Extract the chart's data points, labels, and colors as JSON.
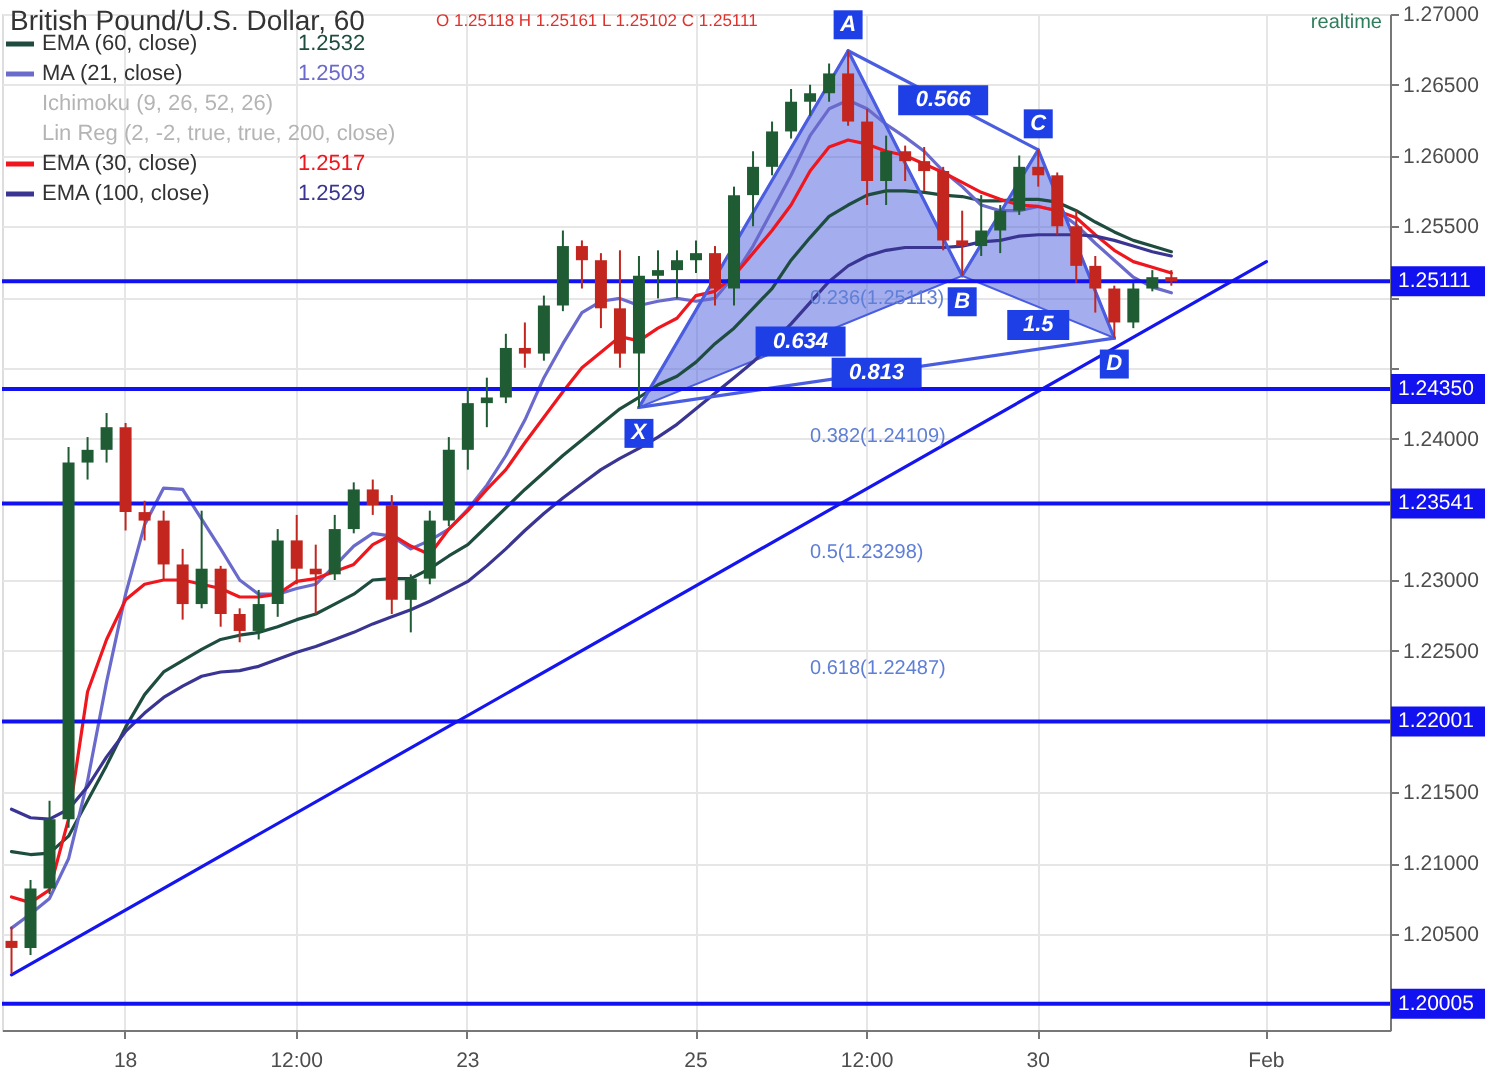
{
  "chart_data": {
    "type": "candlestick",
    "title": "British Pound/U.S. Dollar, 60",
    "subtitle": "O 1.25118 H 1.25161 L 1.25102 C 1.25111",
    "categories": [
      null,
      null,
      null,
      null,
      null,
      null,
      "18",
      null,
      null,
      null,
      null,
      null,
      null,
      null,
      null,
      "12:00",
      null,
      null,
      null,
      null,
      null,
      null,
      null,
      null,
      "23",
      null,
      null,
      null,
      null,
      null,
      null,
      null,
      null,
      null,
      null,
      null,
      "25",
      null,
      null,
      null,
      null,
      null,
      null,
      null,
      null,
      "12:00",
      null,
      null,
      null,
      null,
      null,
      null,
      null,
      null,
      "30",
      null,
      null,
      null,
      null,
      null,
      null,
      null,
      null,
      null,
      null,
      null,
      "Feb",
      null,
      null,
      null,
      null,
      null,
      null
    ],
    "ohlc": [
      [
        1.2045,
        1.2055,
        1.2022,
        1.204
      ],
      [
        1.204,
        1.2088,
        1.2035,
        1.2082
      ],
      [
        1.2082,
        1.2144,
        1.2078,
        1.2131
      ],
      [
        1.2131,
        1.2394,
        1.2125,
        1.2383
      ],
      [
        1.2383,
        1.2401,
        1.2371,
        1.2392
      ],
      [
        1.2392,
        1.2418,
        1.2383,
        1.2408
      ],
      [
        1.2408,
        1.2411,
        1.2335,
        1.2348
      ],
      [
        1.2348,
        1.2356,
        1.2328,
        1.2342
      ],
      [
        1.2342,
        1.2349,
        1.23,
        1.2311
      ],
      [
        1.2311,
        1.2322,
        1.2272,
        1.2283
      ],
      [
        1.2283,
        1.2349,
        1.228,
        1.2308
      ],
      [
        1.2308,
        1.231,
        1.2267,
        1.2276
      ],
      [
        1.2276,
        1.228,
        1.2256,
        1.2264
      ],
      [
        1.2264,
        1.2293,
        1.2258,
        1.2283
      ],
      [
        1.2283,
        1.2336,
        1.2274,
        1.2328
      ],
      [
        1.2328,
        1.2346,
        1.2297,
        1.2308
      ],
      [
        1.2308,
        1.2325,
        1.2276,
        1.2304
      ],
      [
        1.2304,
        1.2346,
        1.23,
        1.2336
      ],
      [
        1.2336,
        1.2369,
        1.2333,
        1.2364
      ],
      [
        1.2364,
        1.2371,
        1.2346,
        1.2353
      ],
      [
        1.2353,
        1.236,
        1.2276,
        1.2286
      ],
      [
        1.2286,
        1.2304,
        1.2263,
        1.2301
      ],
      [
        1.2301,
        1.2349,
        1.2297,
        1.2342
      ],
      [
        1.2342,
        1.2401,
        1.2338,
        1.2392
      ],
      [
        1.2392,
        1.2436,
        1.2378,
        1.2425
      ],
      [
        1.2425,
        1.2443,
        1.2408,
        1.2429
      ],
      [
        1.2429,
        1.2474,
        1.2425,
        1.2464
      ],
      [
        1.2464,
        1.2482,
        1.245,
        1.246
      ],
      [
        1.246,
        1.2501,
        1.2455,
        1.2494
      ],
      [
        1.2494,
        1.2547,
        1.249,
        1.2536
      ],
      [
        1.2536,
        1.254,
        1.2506,
        1.2526
      ],
      [
        1.2526,
        1.2531,
        1.2478,
        1.2492
      ],
      [
        1.2492,
        1.2533,
        1.245,
        1.246
      ],
      [
        1.246,
        1.2529,
        1.2422,
        1.2515
      ],
      [
        1.2515,
        1.2533,
        1.2499,
        1.2519
      ],
      [
        1.2519,
        1.2533,
        1.2499,
        1.2526
      ],
      [
        1.2526,
        1.254,
        1.2517,
        1.2531
      ],
      [
        1.2531,
        1.2536,
        1.2494,
        1.2506
      ],
      [
        1.2506,
        1.2578,
        1.2494,
        1.2572
      ],
      [
        1.2572,
        1.2603,
        1.255,
        1.2592
      ],
      [
        1.2592,
        1.2624,
        1.2586,
        1.2617
      ],
      [
        1.2617,
        1.2647,
        1.2612,
        1.2638
      ],
      [
        1.2638,
        1.265,
        1.2628,
        1.2644
      ],
      [
        1.2644,
        1.2665,
        1.2638,
        1.2658
      ],
      [
        1.2658,
        1.2674,
        1.2621,
        1.2624
      ],
      [
        1.2624,
        1.2633,
        1.2565,
        1.2582
      ],
      [
        1.2582,
        1.2614,
        1.2565,
        1.2603
      ],
      [
        1.2603,
        1.2607,
        1.2582,
        1.2596
      ],
      [
        1.2596,
        1.2606,
        1.2575,
        1.2589
      ],
      [
        1.2589,
        1.2592,
        1.2533,
        1.254
      ],
      [
        1.254,
        1.2561,
        1.2515,
        1.2536
      ],
      [
        1.2536,
        1.2572,
        1.2529,
        1.2547
      ],
      [
        1.2547,
        1.2565,
        1.2531,
        1.2561
      ],
      [
        1.2561,
        1.26,
        1.2558,
        1.2592
      ],
      [
        1.2592,
        1.2604,
        1.2578,
        1.2586
      ],
      [
        1.2586,
        1.2588,
        1.2544,
        1.255
      ],
      [
        1.255,
        1.2561,
        1.251,
        1.2522
      ],
      [
        1.2522,
        1.2529,
        1.2489,
        1.2506
      ],
      [
        1.2506,
        1.2508,
        1.2471,
        1.2482
      ],
      [
        1.2482,
        1.251,
        1.2478,
        1.2506
      ],
      [
        1.2506,
        1.2519,
        1.2504,
        1.2514
      ],
      [
        1.2514,
        1.2519,
        1.2508,
        1.2511
      ],
      null,
      null,
      null,
      null,
      null,
      null,
      null,
      null,
      null,
      null,
      null
    ],
    "colors": [
      "#c2261f",
      "#1f5c34",
      "#1f5c34",
      "#1f5c34",
      "#1f5c34",
      "#1f5c34",
      "#c2261f",
      "#c2261f",
      "#c2261f",
      "#c2261f",
      "#1f5c34",
      "#c2261f",
      "#c2261f",
      "#1f5c34",
      "#1f5c34",
      "#c2261f",
      "#c2261f",
      "#1f5c34",
      "#1f5c34",
      "#c2261f",
      "#c2261f",
      "#1f5c34",
      "#1f5c34",
      "#1f5c34",
      "#1f5c34",
      "#1f5c34",
      "#1f5c34",
      "#c2261f",
      "#1f5c34",
      "#1f5c34",
      "#c2261f",
      "#c2261f",
      "#c2261f",
      "#1f5c34",
      "#1f5c34",
      "#1f5c34",
      "#1f5c34",
      "#c2261f",
      "#1f5c34",
      "#1f5c34",
      "#1f5c34",
      "#1f5c34",
      "#1f5c34",
      "#1f5c34",
      "#c2261f",
      "#c2261f",
      "#1f5c34",
      "#c2261f",
      "#c2261f",
      "#c2261f",
      "#c2261f",
      "#1f5c34",
      "#1f5c34",
      "#1f5c34",
      "#c2261f",
      "#c2261f",
      "#c2261f",
      "#c2261f",
      "#c2261f",
      "#1f5c34",
      "#1f5c34",
      "#c2261f",
      null,
      null,
      null,
      null,
      null,
      null,
      null,
      null,
      null,
      null,
      null
    ],
    "series": [
      {
        "name": "EMA (60, close)",
        "type": "line",
        "color": "#1e4d40",
        "values": [
          1.2108,
          1.2106,
          1.2107,
          1.2119,
          1.2144,
          1.2169,
          1.2196,
          1.2219,
          1.2235,
          1.2243,
          1.2251,
          1.2258,
          1.2261,
          1.2263,
          1.2267,
          1.2272,
          1.2276,
          1.2283,
          1.229,
          1.23,
          1.2301,
          1.2301,
          1.2308,
          1.2317,
          1.2325,
          1.2338,
          1.2351,
          1.2364,
          1.2376,
          1.2388,
          1.2399,
          1.241,
          1.2421,
          1.2429,
          1.2438,
          1.2444,
          1.2454,
          1.2467,
          1.2478,
          1.2492,
          1.2506,
          1.2526,
          1.2542,
          1.2557,
          1.2565,
          1.2572,
          1.2575,
          1.2575,
          1.2574,
          1.2572,
          1.2571,
          1.2568,
          1.2568,
          1.2569,
          1.2569,
          1.2567,
          1.2561,
          1.2553,
          1.2546,
          1.254,
          1.2536,
          1.2532,
          null,
          null,
          null,
          null,
          null,
          null,
          null,
          null,
          null,
          null,
          null
        ]
      },
      {
        "name": "MA (21, close)",
        "type": "line",
        "color": "#6a6acd",
        "values": [
          1.2054,
          1.2064,
          1.2075,
          1.2103,
          1.2158,
          1.2228,
          1.229,
          1.2339,
          1.2365,
          1.2364,
          1.2343,
          1.2322,
          1.23,
          1.229,
          1.229,
          1.2294,
          1.2297,
          1.231,
          1.2324,
          1.2333,
          1.2331,
          1.2322,
          1.2328,
          1.2336,
          1.235,
          1.2367,
          1.2388,
          1.2413,
          1.2443,
          1.2467,
          1.2489,
          1.2497,
          1.2499,
          1.2494,
          1.2497,
          1.2499,
          1.2497,
          1.2499,
          1.2515,
          1.2536,
          1.2561,
          1.2586,
          1.2614,
          1.2633,
          1.2639,
          1.2633,
          1.2622,
          1.2613,
          1.2603,
          1.2589,
          1.2578,
          1.2565,
          1.2561,
          1.2561,
          1.2564,
          1.2561,
          1.2551,
          1.2538,
          1.2526,
          1.2514,
          1.2507,
          1.2503,
          null,
          null,
          null,
          null,
          null,
          null,
          null,
          null,
          null,
          null,
          null
        ]
      },
      {
        "name": "EMA (30, close)",
        "type": "line",
        "color": "#f0161e",
        "values": [
          1.2076,
          1.2072,
          1.2081,
          1.2131,
          1.2221,
          1.2258,
          1.2286,
          1.2297,
          1.23,
          1.23,
          1.2297,
          1.2294,
          1.2288,
          1.2288,
          1.229,
          1.2299,
          1.2301,
          1.2306,
          1.2311,
          1.2325,
          1.2332,
          1.2324,
          1.2318,
          1.2336,
          1.2349,
          1.2364,
          1.2378,
          1.2397,
          1.2415,
          1.2433,
          1.245,
          1.2461,
          1.2472,
          1.2469,
          1.2478,
          1.2485,
          1.2501,
          1.2504,
          1.2515,
          1.2531,
          1.2547,
          1.2565,
          1.2589,
          1.2606,
          1.2611,
          1.2608,
          1.2603,
          1.26,
          1.2594,
          1.2588,
          1.2581,
          1.2574,
          1.2569,
          1.2565,
          1.2564,
          1.2561,
          1.2556,
          1.2544,
          1.2533,
          1.2525,
          1.2521,
          1.2517,
          null,
          null,
          null,
          null,
          null,
          null,
          null,
          null,
          null,
          null,
          null
        ]
      },
      {
        "name": "EMA (100, close)",
        "type": "line",
        "color": "#3a3592",
        "values": [
          1.2138,
          1.2132,
          1.2131,
          1.2138,
          1.2154,
          1.2175,
          1.2193,
          1.2206,
          1.2217,
          1.2225,
          1.2232,
          1.2235,
          1.2236,
          1.2239,
          1.2244,
          1.2249,
          1.2253,
          1.2258,
          1.2263,
          1.2269,
          1.2274,
          1.2279,
          1.2285,
          1.2292,
          1.2299,
          1.231,
          1.2322,
          1.2335,
          1.2347,
          1.2358,
          1.2368,
          1.2378,
          1.2386,
          1.2393,
          1.2401,
          1.241,
          1.2421,
          1.2432,
          1.2443,
          1.2454,
          null,
          1.2481,
          1.2496,
          1.2511,
          1.2522,
          1.2529,
          1.2533,
          1.2535,
          1.2535,
          1.2535,
          1.2536,
          1.2539,
          1.254,
          1.2543,
          1.2544,
          1.2544,
          1.2544,
          1.2543,
          1.254,
          1.2536,
          1.2532,
          1.2529,
          null,
          null,
          null,
          null,
          null,
          null,
          null,
          null,
          null,
          null,
          null
        ]
      },
      {
        "type": "line",
        "color": "#1515f0",
        "values": [
          1.2021,
          null,
          null,
          null,
          null,
          null,
          null,
          null,
          null,
          null,
          null,
          null,
          null,
          null,
          null,
          null,
          null,
          null,
          null,
          null,
          null,
          null,
          null,
          null,
          null,
          null,
          null,
          null,
          null,
          null,
          null,
          null,
          null,
          null,
          null,
          null,
          null,
          null,
          null,
          null,
          null,
          null,
          null,
          null,
          null,
          null,
          null,
          null,
          null,
          null,
          null,
          null,
          null,
          null,
          null,
          null,
          null,
          null,
          null,
          null,
          null,
          null,
          null,
          null,
          null,
          null,
          1.2525,
          null,
          null,
          null,
          null,
          null,
          null
        ]
      },
      {
        "type": "line",
        "color": "#4a5de0",
        "values": [
          null,
          null,
          null,
          null,
          null,
          null,
          null,
          null,
          null,
          null,
          null,
          null,
          null,
          null,
          null,
          null,
          null,
          null,
          null,
          null,
          null,
          null,
          null,
          null,
          null,
          null,
          null,
          null,
          null,
          null,
          null,
          null,
          null,
          1.2422,
          null,
          null,
          null,
          null,
          null,
          null,
          null,
          null,
          null,
          null,
          1.2674,
          null,
          null,
          null,
          null,
          null,
          1.2515,
          null,
          null,
          null,
          1.2604,
          null,
          null,
          null,
          1.2471,
          null,
          null,
          null,
          null,
          null,
          null,
          null,
          null,
          null,
          null,
          null,
          null,
          null,
          null
        ],
        "lower": [
          null,
          null,
          null,
          null,
          null,
          null,
          null,
          null,
          null,
          null,
          null,
          null,
          null,
          null,
          null,
          null,
          null,
          null,
          null,
          null,
          null,
          null,
          null,
          null,
          null,
          null,
          null,
          null,
          null,
          null,
          null,
          null,
          null,
          1.2422,
          null,
          null,
          null,
          null,
          null,
          null,
          null,
          null,
          null,
          null,
          1.2482,
          null,
          null,
          null,
          null,
          null,
          1.2515,
          null,
          null,
          null,
          1.2493,
          null,
          null,
          null,
          1.2471,
          null,
          null,
          null,
          null,
          null,
          null,
          null,
          null,
          null,
          null,
          null,
          null,
          null,
          null
        ],
        "upper": [
          null,
          null,
          null,
          null,
          null,
          null,
          null,
          null,
          null,
          null,
          null,
          null,
          null,
          null,
          null,
          null,
          null,
          null,
          null,
          null,
          null,
          null,
          null,
          null,
          null,
          null,
          null,
          null,
          null,
          null,
          null,
          null,
          null,
          1.2422,
          null,
          null,
          null,
          null,
          null,
          null,
          null,
          null,
          null,
          null,
          1.2674,
          null,
          null,
          null,
          null,
          null,
          1.2515,
          null,
          null,
          null,
          1.2604,
          null,
          null,
          null,
          1.2471,
          null,
          null,
          null,
          null,
          null,
          null,
          null,
          null,
          null,
          null,
          null,
          null,
          null,
          null
        ]
      },
      {
        "type": "line",
        "color": "#4a5de0",
        "values": [
          null,
          null,
          null,
          null,
          null,
          null,
          null,
          null,
          null,
          null,
          null,
          null,
          null,
          null,
          null,
          null,
          null,
          null,
          null,
          null,
          null,
          null,
          null,
          null,
          null,
          null,
          null,
          null,
          null,
          null,
          null,
          null,
          null,
          null,
          null,
          null,
          null,
          null,
          null,
          null,
          null,
          null,
          null,
          null,
          1.2674,
          null,
          null,
          null,
          null,
          null,
          null,
          null,
          null,
          null,
          1.2604,
          null,
          null,
          null,
          null,
          null,
          null,
          null,
          null,
          null,
          null,
          null,
          null,
          null,
          null,
          null,
          null,
          null,
          null
        ]
      },
      {
        "type": "line",
        "color": "#4a5de0",
        "values": [
          null,
          null,
          null,
          null,
          null,
          null,
          null,
          null,
          null,
          null,
          null,
          null,
          null,
          null,
          null,
          null,
          null,
          null,
          null,
          null,
          null,
          null,
          null,
          null,
          null,
          null,
          null,
          null,
          null,
          null,
          null,
          null,
          null,
          1.2422,
          null,
          null,
          null,
          null,
          null,
          null,
          null,
          null,
          null,
          null,
          null,
          null,
          null,
          null,
          null,
          null,
          null,
          null,
          null,
          null,
          null,
          null,
          null,
          null,
          1.2471,
          null,
          null,
          null,
          null,
          null,
          null,
          null,
          null,
          null,
          null,
          null,
          null,
          null,
          null
        ]
      }
    ],
    "ref_lines": [
      {
        "axis": "y",
        "value": 1.25111,
        "label": "1.25111",
        "color": "#1212f0"
      },
      {
        "axis": "y",
        "value": 1.2435,
        "label": "1.24350",
        "color": "#1212f0"
      },
      {
        "axis": "y",
        "value": 1.23541,
        "label": "1.23541",
        "color": "#1212f0"
      },
      {
        "axis": "y",
        "value": 1.22001,
        "label": "1.22001",
        "color": "#1212f0"
      },
      {
        "axis": "y",
        "value": 1.20005,
        "label": "1.20005",
        "color": "#1212f0"
      }
    ],
    "annotations": [
      {
        "text": "X",
        "y": 1.2422
      },
      {
        "text": "A",
        "y": 1.2674
      },
      {
        "text": "B",
        "y": 1.2515
      },
      {
        "text": "C",
        "y": 1.2604
      },
      {
        "text": "D",
        "y": 1.2471
      },
      {
        "text": "0.566",
        "y": 1.2639
      },
      {
        "text": "0.634",
        "y": 1.24685
      },
      {
        "text": "0.813",
        "y": 1.24465
      },
      {
        "text": "1.5",
        "y": 1.2493
      },
      "1.2532",
      "1.2503",
      "Ichimoku (9, 26, 52, 26)",
      "Lin Reg (2, -2, true, true, 200, close)",
      "1.2517",
      "1.2529",
      "realtime",
      "0.236(1.25113)",
      "0.382(1.24109)",
      "0.5(1.23298)",
      "0.618(1.22487)"
    ],
    "ylim": [
      1.1982,
      1.27
    ],
    "yticks": [
      {
        "value": 1.27,
        "label": "1.27000"
      },
      {
        "value": 1.265,
        "label": "1.26500"
      },
      {
        "value": 1.26,
        "label": "1.26000"
      },
      {
        "value": 1.255,
        "label": "1.25500"
      },
      {
        "value": 1.25,
        "label": null
      },
      {
        "value": 1.245,
        "label": null
      },
      {
        "value": 1.24,
        "label": "1.24000"
      },
      {
        "value": 1.23,
        "label": "1.23000"
      },
      {
        "value": 1.225,
        "label": "1.22500"
      },
      {
        "value": 1.215,
        "label": "1.21500"
      },
      {
        "value": 1.21,
        "label": "1.21000"
      },
      {
        "value": 1.205,
        "label": "1.20500"
      }
    ],
    "grid": true,
    "legend": "top left"
  }
}
